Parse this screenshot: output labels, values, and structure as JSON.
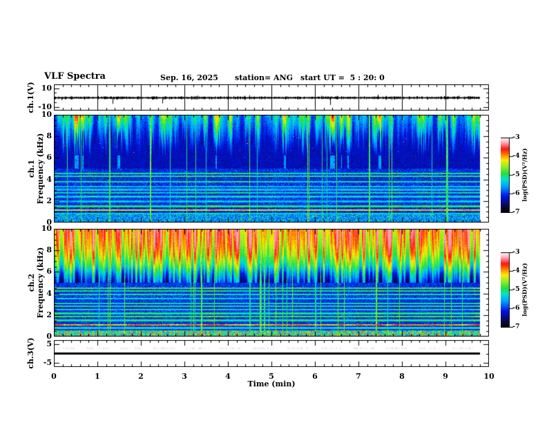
{
  "header": {
    "title": "VLF Spectra",
    "date": "Sep. 16, 2025",
    "station": "station= ANG",
    "start_ut": "start UT =  5 : 20: 0"
  },
  "time_axis": {
    "label": "Time (min)",
    "min": 0,
    "max": 10,
    "ticks": [
      "0",
      "1",
      "2",
      "3",
      "4",
      "5",
      "6",
      "7",
      "8",
      "9",
      "10"
    ],
    "tick_values": [
      0,
      1,
      2,
      3,
      4,
      5,
      6,
      7,
      8,
      9,
      10
    ],
    "minor_step_min": 0.2,
    "data_end_min": 9.8
  },
  "panels": {
    "ch1_wave": {
      "ylabel": "ch.1(V)",
      "yticks": [
        "10",
        "-10"
      ],
      "ytick_values": [
        10,
        -10
      ],
      "ylim": [
        -14,
        14
      ]
    },
    "ch1_spec": {
      "ylabel_channel": "ch.1",
      "ylabel_axis": "Frequency (kHz)",
      "yticks": [
        "10",
        "8",
        "6",
        "4",
        "2",
        "0"
      ],
      "ytick_values": [
        10,
        8,
        6,
        4,
        2,
        0
      ],
      "ylim": [
        0,
        10
      ]
    },
    "ch2_spec": {
      "ylabel_channel": "ch.2",
      "ylabel_axis": "Frequency (kHz)",
      "yticks": [
        "10",
        "8",
        "6",
        "4",
        "2",
        "0"
      ],
      "ytick_values": [
        10,
        8,
        6,
        4,
        2,
        0
      ],
      "ylim": [
        0,
        10
      ]
    },
    "ch3_wave": {
      "ylabel": "ch.3(V)",
      "yticks": [
        "5",
        "-5"
      ],
      "ytick_values": [
        5,
        -5
      ],
      "ylim": [
        -7.2,
        7.2
      ]
    }
  },
  "colorbar": {
    "label": "log(PSD)(V²/Hz)",
    "ticks": [
      "-3",
      "-4",
      "-5",
      "-6",
      "-7"
    ],
    "tick_values": [
      -3,
      -4,
      -5,
      -6,
      -7
    ],
    "vmax": -3,
    "vmin": -7,
    "colormap_stops": [
      [
        0.0,
        "#000000"
      ],
      [
        0.1,
        "#0a0a5a"
      ],
      [
        0.22,
        "#0014e6"
      ],
      [
        0.35,
        "#00a0ff"
      ],
      [
        0.45,
        "#00e6c8"
      ],
      [
        0.52,
        "#28dc3c"
      ],
      [
        0.62,
        "#96f028"
      ],
      [
        0.7,
        "#ffeb00"
      ],
      [
        0.78,
        "#ff7800"
      ],
      [
        0.85,
        "#ff1414"
      ],
      [
        0.93,
        "#ffa0aa"
      ],
      [
        1.0,
        "#ffffff"
      ]
    ]
  },
  "chart_data": [
    {
      "type": "line",
      "panel": "ch1_wave",
      "title": "ch.1 broadband amplitude",
      "xlabel": "Time (min)",
      "ylabel": "ch.1(V)",
      "x_range": [
        0,
        9.8
      ],
      "ylim": [
        -14,
        14
      ],
      "baseline_v": 0,
      "noise_amplitude_v": 1.0,
      "spikes_min_v": [
        [
          0.18,
          -3.0
        ],
        [
          1.35,
          -6.8
        ],
        [
          2.5,
          -6.3
        ],
        [
          3.3,
          2.0
        ],
        [
          4.5,
          2.4
        ],
        [
          6.35,
          -8.0
        ],
        [
          7.45,
          3.0
        ],
        [
          8.6,
          -2.2
        ],
        [
          9.3,
          2.0
        ]
      ],
      "seed": 11
    },
    {
      "type": "heatmap",
      "panel": "ch1_spec",
      "title": "ch.1 VLF spectrogram",
      "xlabel": "Time (min)",
      "ylabel": "Frequency (kHz)",
      "x_range": [
        0,
        9.8
      ],
      "y_range_khz": [
        0,
        10
      ],
      "value_range_log_psd": [
        -7,
        -3
      ],
      "bands": [
        {
          "f_khz": [
            6.2,
            10
          ],
          "desc": "dense vertical sferic streaks, green-yellow on dark blue"
        },
        {
          "f_khz": [
            5.0,
            6.2
          ],
          "desc": "dark background with sparse streak tips"
        },
        {
          "f_khz": [
            0.9,
            5.0
          ],
          "desc": "patchy dark-blue noise"
        },
        {
          "f_khz": [
            0.0,
            0.9
          ],
          "desc": "brighter blue-cyan noise band"
        }
      ],
      "background_levels": {
        "bottom": 0.24,
        "low": 0.17,
        "mid": 0.13,
        "top_floor": 0.12
      },
      "streaks": {
        "cut_khz_min": 5.5,
        "cut_khz_spread": 2.8,
        "floor": 0.1,
        "gain": 0.62
      },
      "hlines_khz_intensity": [
        [
          4.55,
          0.5
        ],
        [
          4.3,
          0.52
        ],
        [
          3.8,
          0.5
        ],
        [
          3.35,
          0.42
        ],
        [
          3.05,
          0.42
        ],
        [
          2.75,
          0.48
        ],
        [
          2.4,
          0.44
        ],
        [
          1.95,
          0.42
        ],
        [
          1.5,
          0.52
        ],
        [
          1.15,
          0.72
        ],
        [
          0.85,
          0.45
        ]
      ],
      "vlines": {
        "count": 22,
        "strength": 0.42,
        "spread": 0.16
      },
      "seed": 23
    },
    {
      "type": "heatmap",
      "panel": "ch2_spec",
      "title": "ch.2 VLF spectrogram",
      "xlabel": "Time (min)",
      "ylabel": "Frequency (kHz)",
      "x_range": [
        0,
        9.8
      ],
      "y_range_khz": [
        0,
        10
      ],
      "value_range_log_psd": [
        -7,
        -3
      ],
      "bands": [
        {
          "f_khz": [
            7.0,
            10
          ],
          "desc": "hot red/orange/yellow sferic streaks"
        },
        {
          "f_khz": [
            5.0,
            7.0
          ],
          "desc": "green-cyan icicle streaks fading to blue"
        },
        {
          "f_khz": [
            0.55,
            5.0
          ],
          "desc": "blue noise with many horizontal tones"
        },
        {
          "f_khz": [
            0.0,
            0.55
          ],
          "desc": "bright green speckle band"
        }
      ],
      "top_profile_khz_level": [
        [
          5.0,
          0.22
        ],
        [
          5.8,
          0.35
        ],
        [
          6.6,
          0.52
        ],
        [
          7.6,
          0.66
        ],
        [
          8.6,
          0.74
        ],
        [
          10.0,
          0.8
        ]
      ],
      "background_levels": {
        "low": 0.18
      },
      "hlines_khz_intensity": [
        [
          4.5,
          0.55
        ],
        [
          4.25,
          0.5
        ],
        [
          3.9,
          0.5
        ],
        [
          3.55,
          0.45
        ],
        [
          3.1,
          0.48
        ],
        [
          2.8,
          0.5
        ],
        [
          2.5,
          0.45
        ],
        [
          2.15,
          0.5
        ],
        [
          1.85,
          0.55
        ],
        [
          1.5,
          0.5
        ],
        [
          1.1,
          0.78
        ],
        [
          0.8,
          0.45
        ]
      ],
      "vlines": {
        "count": 30,
        "strength": 0.44,
        "spread": 0.14
      },
      "seed": 47
    },
    {
      "type": "line",
      "panel": "ch3_wave",
      "title": "ch.3 flat trace",
      "xlabel": "Time (min)",
      "ylabel": "ch.3(V)",
      "x_range": [
        0,
        9.8
      ],
      "ylim": [
        -7.2,
        7.2
      ],
      "baseline_v": 0,
      "noise_amplitude_v": 0,
      "line_thickness_px": 3,
      "spikes_min_v": [],
      "seed": 5
    }
  ]
}
